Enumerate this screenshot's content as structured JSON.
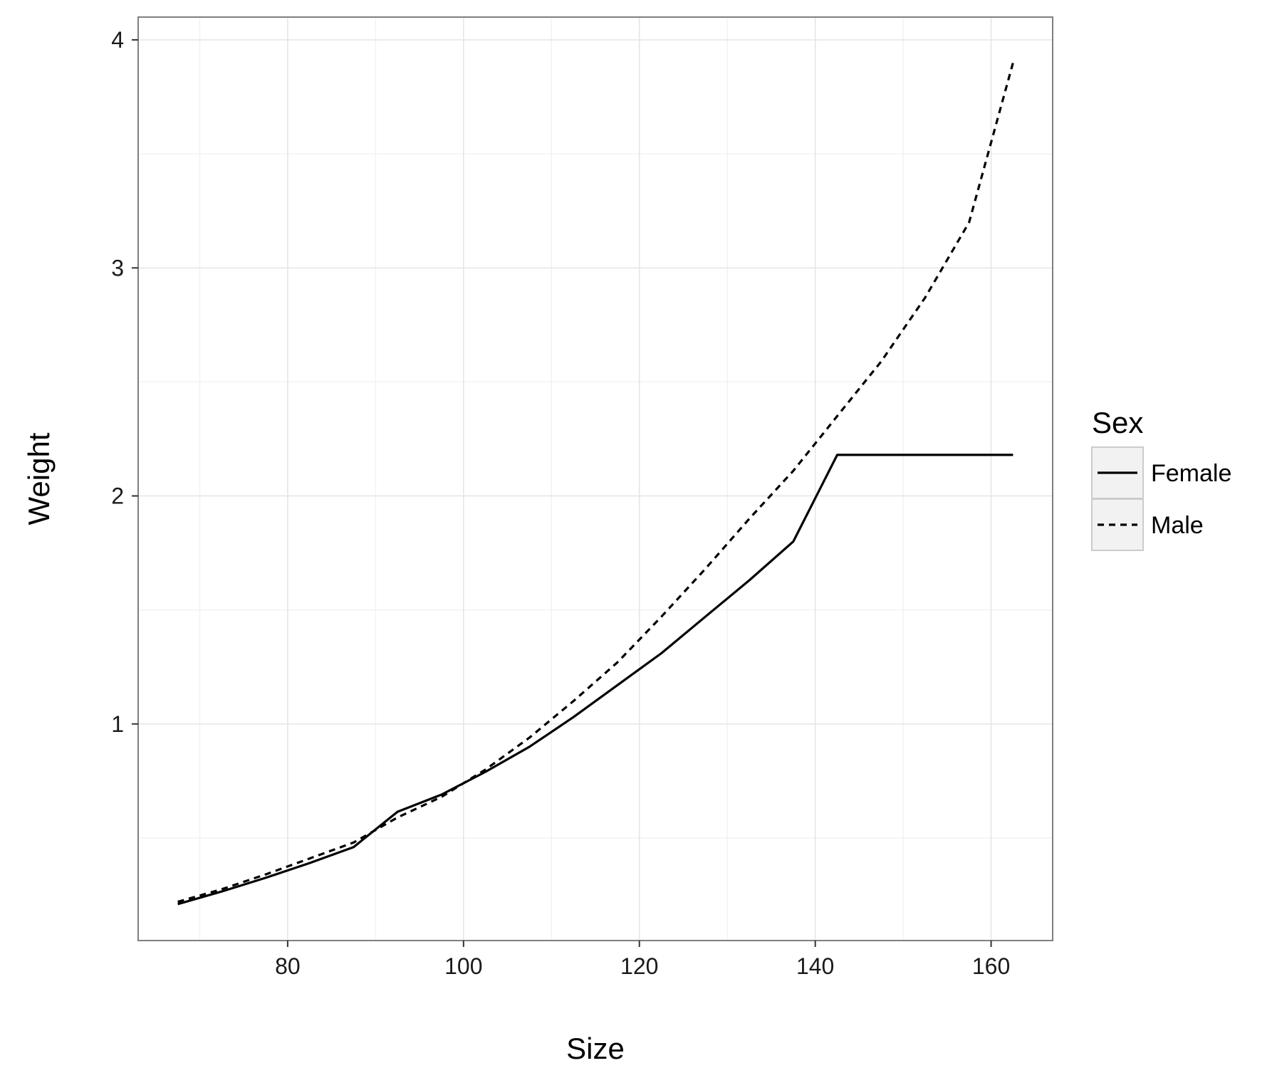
{
  "chart_data": {
    "type": "line",
    "xlabel": "Size",
    "ylabel": "Weight",
    "xlim": [
      63,
      167
    ],
    "ylim": [
      0.05,
      4.1
    ],
    "x_ticks": [
      80,
      100,
      120,
      140,
      160
    ],
    "x_tick_labels": [
      "80",
      "100",
      "120",
      "140",
      "160"
    ],
    "y_ticks": [
      1,
      2,
      3,
      4
    ],
    "y_tick_labels": [
      "1",
      "2",
      "3",
      "4"
    ],
    "grid": true,
    "legend": {
      "title": "Sex",
      "placement": "right"
    },
    "series": [
      {
        "name": "Female",
        "linestyle": "solid",
        "color": "#000000",
        "points": [
          [
            67.5,
            0.21
          ],
          [
            72.5,
            0.265
          ],
          [
            77.5,
            0.325
          ],
          [
            82.5,
            0.39
          ],
          [
            87.5,
            0.46
          ],
          [
            92.5,
            0.615
          ],
          [
            97.5,
            0.69
          ],
          [
            102.5,
            0.79
          ],
          [
            107.5,
            0.9
          ],
          [
            112.5,
            1.03
          ],
          [
            117.5,
            1.17
          ],
          [
            122.5,
            1.31
          ],
          [
            127.5,
            1.47
          ],
          [
            132.5,
            1.63
          ],
          [
            137.5,
            1.8
          ],
          [
            142.5,
            2.18
          ],
          [
            147.5,
            2.18
          ],
          [
            152.5,
            2.18
          ],
          [
            157.5,
            2.18
          ],
          [
            162.5,
            2.18
          ]
        ]
      },
      {
        "name": "Male",
        "linestyle": "dashed",
        "color": "#000000",
        "points": [
          [
            67.5,
            0.22
          ],
          [
            72.5,
            0.275
          ],
          [
            77.5,
            0.34
          ],
          [
            82.5,
            0.41
          ],
          [
            87.5,
            0.48
          ],
          [
            92.5,
            0.59
          ],
          [
            97.5,
            0.68
          ],
          [
            102.5,
            0.8
          ],
          [
            107.5,
            0.94
          ],
          [
            112.5,
            1.1
          ],
          [
            117.5,
            1.27
          ],
          [
            122.5,
            1.47
          ],
          [
            127.5,
            1.68
          ],
          [
            132.5,
            1.9
          ],
          [
            137.5,
            2.11
          ],
          [
            142.5,
            2.35
          ],
          [
            147.5,
            2.59
          ],
          [
            152.5,
            2.87
          ],
          [
            157.5,
            3.2
          ],
          [
            162.5,
            3.9
          ]
        ]
      }
    ]
  }
}
